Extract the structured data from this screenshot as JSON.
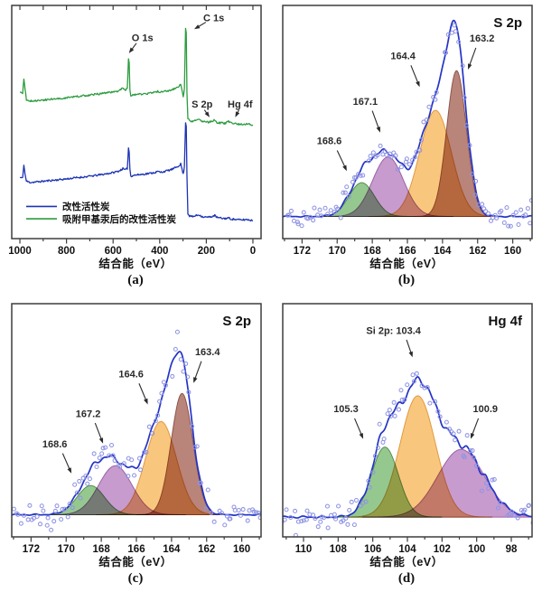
{
  "figure": {
    "background": "#ffffff",
    "description": "XPS spectra 2x2 panel figure"
  },
  "colors": {
    "frame": "#3d3d3d",
    "tick_text": "#111111",
    "envelope": "#2434c6",
    "survey_blue": "#1d34b4",
    "survey_green": "#2d9c3f",
    "scatter": "#8f94e3",
    "annotation": "#2a2a2a",
    "fills": {
      "green": "#8cc386",
      "purple": "#c392cb",
      "orange": "#f9c173",
      "maroon": "#b37a6f"
    },
    "fill_edges": {
      "green": "#55904f",
      "purple": "#9a62a6",
      "orange": "#e09a42",
      "maroon": "#8e564c"
    }
  },
  "chart_data": [
    {
      "id": "a",
      "type": "line",
      "title": "",
      "caption": "(a)",
      "xlabel": "结合能（eV）",
      "x_range": [
        1035,
        -35
      ],
      "x_ticks": [
        1000,
        800,
        600,
        400,
        200,
        0
      ],
      "x_minor_step": 100,
      "top_ticks": true,
      "seed": 11,
      "legend": [
        {
          "label": "改性活性炭",
          "color_key": "survey_blue",
          "y": 0.138
        },
        {
          "label": "吸附甲基汞后的改性活性炭",
          "color_key": "survey_green",
          "y": 0.085
        }
      ],
      "annotations": [
        {
          "text": "O 1s",
          "tx": 474,
          "ty": 0.862,
          "sx": 500,
          "sy": 0.838,
          "ex": 532,
          "ey": 0.795
        },
        {
          "text": "C 1s",
          "tx": 168,
          "ty": 0.948,
          "sx": 202,
          "sy": 0.928,
          "ex": 252,
          "ey": 0.898
        },
        {
          "text": "S 2p",
          "tx": 218,
          "ty": 0.578,
          "sx": 208,
          "sy": 0.552,
          "ex": 186,
          "ey": 0.52
        },
        {
          "text": "Hg 4f",
          "tx": 55,
          "ty": 0.578,
          "sx": 60,
          "sy": 0.552,
          "ex": 76,
          "ey": 0.52
        }
      ],
      "series": [
        {
          "name": "改性活性炭",
          "color_key": "survey_blue",
          "points": [
            [
              1000,
              0.262
            ],
            [
              988,
              0.26
            ],
            [
              983,
              0.318
            ],
            [
              978,
              0.276
            ],
            [
              972,
              0.246
            ],
            [
              955,
              0.241
            ],
            [
              920,
              0.244
            ],
            [
              880,
              0.248
            ],
            [
              840,
              0.252
            ],
            [
              800,
              0.256
            ],
            [
              760,
              0.261
            ],
            [
              720,
              0.265
            ],
            [
              680,
              0.27
            ],
            [
              640,
              0.276
            ],
            [
              600,
              0.283
            ],
            [
              575,
              0.29
            ],
            [
              558,
              0.3
            ],
            [
              548,
              0.294
            ],
            [
              539,
              0.301
            ],
            [
              534,
              0.388
            ],
            [
              531,
              0.372
            ],
            [
              528,
              0.3
            ],
            [
              524,
              0.268
            ],
            [
              510,
              0.272
            ],
            [
              490,
              0.274
            ],
            [
              465,
              0.277
            ],
            [
              440,
              0.28
            ],
            [
              420,
              0.284
            ],
            [
              406,
              0.288
            ],
            [
              399,
              0.284
            ],
            [
              385,
              0.287
            ],
            [
              360,
              0.293
            ],
            [
              340,
              0.3
            ],
            [
              322,
              0.31
            ],
            [
              310,
              0.32
            ],
            [
              304,
              0.297
            ],
            [
              299,
              0.276
            ],
            [
              294,
              0.308
            ],
            [
              289,
              0.5
            ],
            [
              286,
              0.482
            ],
            [
              283,
              0.27
            ],
            [
              279,
              0.108
            ],
            [
              272,
              0.097
            ],
            [
              258,
              0.094
            ],
            [
              243,
              0.099
            ],
            [
              231,
              0.102
            ],
            [
              217,
              0.094
            ],
            [
              202,
              0.092
            ],
            [
              188,
              0.092
            ],
            [
              172,
              0.096
            ],
            [
              164,
              0.099
            ],
            [
              154,
              0.091
            ],
            [
              141,
              0.088
            ],
            [
              120,
              0.086
            ],
            [
              105,
              0.089
            ],
            [
              97,
              0.085
            ],
            [
              75,
              0.082
            ],
            [
              50,
              0.08
            ],
            [
              25,
              0.082
            ],
            [
              0,
              0.077
            ]
          ]
        },
        {
          "name": "吸附甲基汞后的改性活性炭",
          "color_key": "survey_green",
          "points": [
            [
              1000,
              0.627
            ],
            [
              988,
              0.625
            ],
            [
              983,
              0.685
            ],
            [
              978,
              0.64
            ],
            [
              972,
              0.596
            ],
            [
              955,
              0.59
            ],
            [
              920,
              0.592
            ],
            [
              880,
              0.596
            ],
            [
              840,
              0.6
            ],
            [
              800,
              0.604
            ],
            [
              760,
              0.609
            ],
            [
              720,
              0.613
            ],
            [
              680,
              0.618
            ],
            [
              640,
              0.623
            ],
            [
              600,
              0.629
            ],
            [
              575,
              0.634
            ],
            [
              558,
              0.645
            ],
            [
              548,
              0.638
            ],
            [
              539,
              0.645
            ],
            [
              534,
              0.772
            ],
            [
              531,
              0.755
            ],
            [
              528,
              0.64
            ],
            [
              524,
              0.612
            ],
            [
              510,
              0.616
            ],
            [
              490,
              0.618
            ],
            [
              465,
              0.621
            ],
            [
              440,
              0.624
            ],
            [
              420,
              0.627
            ],
            [
              406,
              0.632
            ],
            [
              399,
              0.627
            ],
            [
              385,
              0.63
            ],
            [
              360,
              0.635
            ],
            [
              340,
              0.641
            ],
            [
              322,
              0.65
            ],
            [
              310,
              0.66
            ],
            [
              304,
              0.636
            ],
            [
              299,
              0.612
            ],
            [
              294,
              0.64
            ],
            [
              289,
              0.9
            ],
            [
              286,
              0.882
            ],
            [
              283,
              0.62
            ],
            [
              279,
              0.515
            ],
            [
              272,
              0.505
            ],
            [
              258,
              0.502
            ],
            [
              243,
              0.507
            ],
            [
              231,
              0.51
            ],
            [
              217,
              0.502
            ],
            [
              202,
              0.499
            ],
            [
              188,
              0.5
            ],
            [
              172,
              0.505
            ],
            [
              164,
              0.508
            ],
            [
              154,
              0.498
            ],
            [
              141,
              0.496
            ],
            [
              120,
              0.494
            ],
            [
              105,
              0.502
            ],
            [
              97,
              0.496
            ],
            [
              75,
              0.492
            ],
            [
              50,
              0.49
            ],
            [
              25,
              0.492
            ],
            [
              0,
              0.487
            ]
          ]
        }
      ]
    },
    {
      "id": "b",
      "type": "fitted",
      "title": "S 2p",
      "caption": "(b)",
      "xlabel": "结合能（eV）",
      "x_range": [
        173.1,
        158.9
      ],
      "x_ticks": [
        172,
        170,
        168,
        166,
        164,
        162,
        160
      ],
      "x_minor_step": 1,
      "baseline": 0.095,
      "seed": 7,
      "noise": 0.045,
      "wob": 0.007,
      "components": [
        {
          "label": "168.6",
          "center": 168.6,
          "sigma": 0.72,
          "amplitude": 0.145,
          "color": "green"
        },
        {
          "label": "167.1",
          "center": 167.1,
          "sigma": 0.88,
          "amplitude": 0.255,
          "color": "purple"
        },
        {
          "label": "164.4",
          "center": 164.4,
          "sigma": 0.9,
          "amplitude": 0.455,
          "color": "orange"
        },
        {
          "label": "163.2",
          "center": 163.2,
          "sigma": 0.56,
          "amplitude": 0.625,
          "color": "maroon"
        }
      ],
      "annotations": [
        {
          "text": "168.6",
          "tx": 170.45,
          "ty": 0.42,
          "sx": 170.0,
          "sy": 0.378,
          "ex": 169.45,
          "ey": 0.29
        },
        {
          "text": "167.1",
          "tx": 168.4,
          "ty": 0.59,
          "sx": 168.0,
          "sy": 0.548,
          "ex": 167.55,
          "ey": 0.455
        },
        {
          "text": "164.4",
          "tx": 166.25,
          "ty": 0.785,
          "sx": 165.8,
          "sy": 0.743,
          "ex": 165.3,
          "ey": 0.65
        },
        {
          "text": "163.2",
          "tx": 161.75,
          "ty": 0.86,
          "sx": 162.1,
          "sy": 0.818,
          "ex": 162.55,
          "ey": 0.725
        }
      ]
    },
    {
      "id": "c",
      "type": "fitted",
      "title": "S 2p",
      "caption": "(c)",
      "xlabel": "结合能（eV）",
      "x_range": [
        173.1,
        158.9
      ],
      "x_ticks": [
        172,
        170,
        168,
        166,
        164,
        162,
        160
      ],
      "x_minor_step": 1,
      "baseline": 0.095,
      "seed": 19,
      "noise": 0.045,
      "wob": 0.007,
      "components": [
        {
          "label": "168.6",
          "center": 168.6,
          "sigma": 0.78,
          "amplitude": 0.125,
          "color": "green"
        },
        {
          "label": "167.2",
          "center": 167.2,
          "sigma": 0.95,
          "amplitude": 0.21,
          "color": "purple"
        },
        {
          "label": "164.6",
          "center": 164.6,
          "sigma": 0.88,
          "amplitude": 0.4,
          "color": "orange"
        },
        {
          "label": "163.4",
          "center": 163.4,
          "sigma": 0.62,
          "amplitude": 0.52,
          "color": "maroon"
        }
      ],
      "annotations": [
        {
          "text": "168.6",
          "tx": 170.65,
          "ty": 0.4,
          "sx": 170.2,
          "sy": 0.358,
          "ex": 169.7,
          "ey": 0.272
        },
        {
          "text": "167.2",
          "tx": 168.75,
          "ty": 0.53,
          "sx": 168.35,
          "sy": 0.488,
          "ex": 167.9,
          "ey": 0.4
        },
        {
          "text": "164.6",
          "tx": 166.3,
          "ty": 0.7,
          "sx": 165.85,
          "sy": 0.658,
          "ex": 165.35,
          "ey": 0.568
        },
        {
          "text": "163.4",
          "tx": 161.95,
          "ty": 0.795,
          "sx": 162.3,
          "sy": 0.753,
          "ex": 162.75,
          "ey": 0.66
        }
      ]
    },
    {
      "id": "d",
      "type": "fitted",
      "title": "Hg 4f",
      "caption": "(d)",
      "xlabel": "结合能（eV）",
      "x_range": [
        111.2,
        96.8
      ],
      "x_ticks": [
        110,
        108,
        106,
        104,
        102,
        100,
        98
      ],
      "x_minor_step": 1,
      "baseline": 0.085,
      "seed": 29,
      "noise": 0.055,
      "wob": 0.011,
      "components": [
        {
          "label": "105.3",
          "center": 105.3,
          "sigma": 0.78,
          "amplitude": 0.3,
          "color": "green"
        },
        {
          "label": "Si 2p: 103.4",
          "center": 103.4,
          "sigma": 1.02,
          "amplitude": 0.52,
          "color": "orange"
        },
        {
          "label": "100.9",
          "center": 100.9,
          "sigma": 1.35,
          "amplitude": 0.29,
          "color": "purple"
        }
      ],
      "annotations": [
        {
          "text": "Si 2p: 103.4",
          "tx": 104.8,
          "ty": 0.885,
          "sx": 104.05,
          "sy": 0.845,
          "ex": 103.7,
          "ey": 0.77
        },
        {
          "text": "105.3",
          "tx": 107.55,
          "ty": 0.55,
          "sx": 107.05,
          "sy": 0.508,
          "ex": 106.55,
          "ey": 0.42
        },
        {
          "text": "100.9",
          "tx": 99.5,
          "ty": 0.55,
          "sx": 99.9,
          "sy": 0.508,
          "ex": 100.35,
          "ey": 0.42
        }
      ]
    }
  ]
}
